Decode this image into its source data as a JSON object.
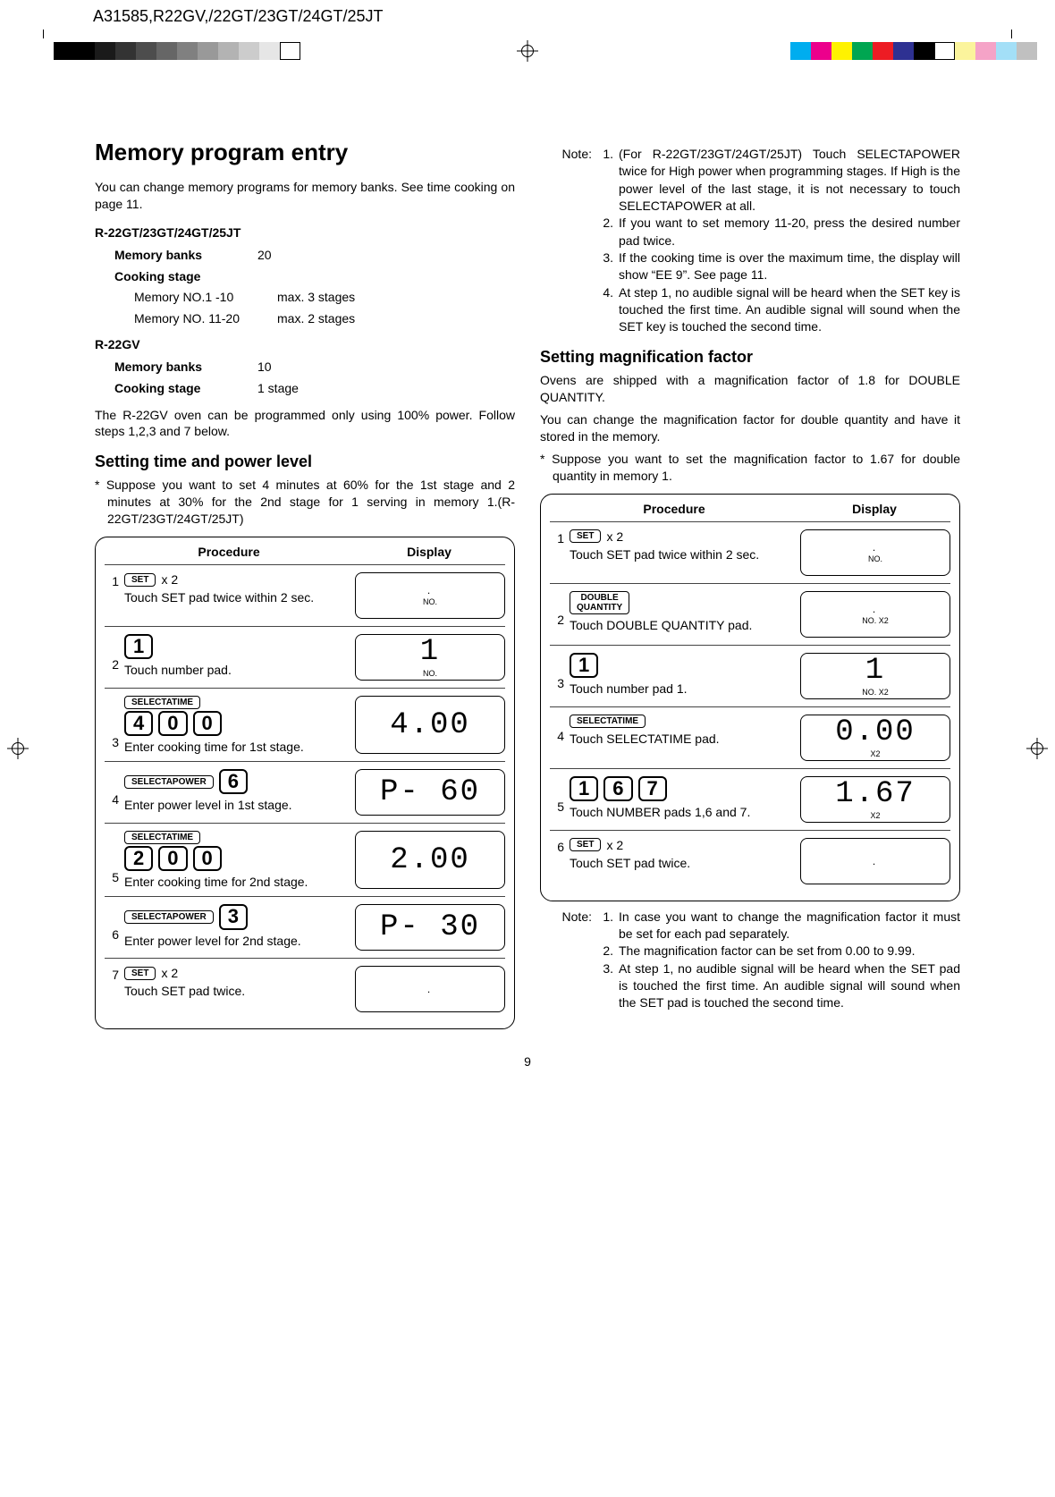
{
  "header": "A31585,R22GV,/22GT/23GT/24GT/25JT",
  "gray_swatches": [
    "#000000",
    "#000000",
    "#1a1a1a",
    "#333333",
    "#4d4d4d",
    "#666666",
    "#808080",
    "#999999",
    "#b3b3b3",
    "#cccccc",
    "#e6e6e6",
    "#ffffff"
  ],
  "color_swatches": [
    "#00adef",
    "#ec008c",
    "#fff200",
    "#00a651",
    "#ed1c24",
    "#2e3192",
    "#000000",
    "#ffffff",
    "#fbf49c",
    "#f5a3c7",
    "#a3dff7",
    "#c0c0c0"
  ],
  "left": {
    "h1": "Memory program entry",
    "intro": "You can change memory programs for  memory banks. See time cooking  on page 11.",
    "m1_head": "R-22GT/23GT/24GT/25JT",
    "m1_banks_label": "Memory banks",
    "m1_banks_val": "20",
    "m1_stage_label": "Cooking stage",
    "m1_sub1_l": "Memory NO.1 -10",
    "m1_sub1_v": "max. 3 stages",
    "m1_sub2_l": "Memory NO. 11-20",
    "m1_sub2_v": "max. 2 stages",
    "m2_head": "R-22GV",
    "m2_banks_label": "Memory banks",
    "m2_banks_val": "10",
    "m2_stage_label": "Cooking stage",
    "m2_stage_val": "1 stage",
    "note_gv": "The R-22GV oven can be programmed only using 100% power. Follow steps 1,2,3 and 7 below.",
    "h2a": "Setting time and power level",
    "suppose": "Suppose you want to set 4 minutes at 60% for the 1st stage and 2 minutes at 30% for the 2nd stage for 1 serving in memory 1.(R-22GT/23GT/24GT/25JT)",
    "tbl_proc": "Procedure",
    "tbl_disp": "Display",
    "step1_pad": "SET",
    "step1_mult": "x 2",
    "step1_txt": "Touch SET pad twice within 2 sec.",
    "step1_disp_sub": "NO.",
    "step2_pad": "1",
    "step2_txt": "Touch number pad.",
    "step2_disp_seg": "1",
    "step2_disp_sub": "NO.",
    "step3_padA": "SELECTATIME",
    "step3_pad1": "4",
    "step3_pad2": "0",
    "step3_pad3": "0",
    "step3_txt": "Enter cooking time for 1st stage.",
    "step3_disp_seg": "4.00",
    "step4_padA": "SELECTAPOWER",
    "step4_pad1": "6",
    "step4_txt": "Enter power level in 1st stage.",
    "step4_disp_seg": "P- 60",
    "step5_padA": "SELECTATIME",
    "step5_pad1": "2",
    "step5_pad2": "0",
    "step5_pad3": "0",
    "step5_txt": "Enter cooking time for 2nd stage.",
    "step5_disp_seg": "2.00",
    "step6_padA": "SELECTAPOWER",
    "step6_pad1": "3",
    "step6_txt": "Enter power level for 2nd stage.",
    "step6_disp_seg": "P- 30",
    "step7_pad": "SET",
    "step7_mult": "x 2",
    "step7_txt": "Touch SET pad twice."
  },
  "right": {
    "note_head": "Note:",
    "n1": "(For R-22GT/23GT/24GT/25JT) Touch SELECTAPOWER twice for High power when programming stages. If High is the power level of the last stage, it is not necessary to touch SELECTAPOWER at all.",
    "n2": "If you want to set memory 11-20, press the desired number  pad twice.",
    "n3": "If the cooking time is over the maximum time, the display will show “EE 9”. See page 11.",
    "n4": "At step 1, no audible signal will be heard when the SET key is touched the first time. An audible signal will sound when the SET key is touched the second time.",
    "h2b": "Setting magnification factor",
    "p1": "Ovens are shipped with a magnification factor of 1.8 for DOUBLE QUANTITY.",
    "p2": "You can change the magnification factor for double quantity and have it stored in the memory.",
    "suppose": "Suppose you want to set the magnification factor to 1.67 for double quantity in memory 1.",
    "tbl_proc": "Procedure",
    "tbl_disp": "Display",
    "r1_pad": "SET",
    "r1_mult": "x 2",
    "r1_txt": "Touch SET pad twice within 2 sec.",
    "r1_sub": "NO.",
    "r2_pad": "DOUBLE QUANTITY",
    "r2_txt": "Touch DOUBLE QUANTITY pad.",
    "r2_sub": "NO.  X2",
    "r3_pad": "1",
    "r3_txt": "Touch number pad 1.",
    "r3_seg": "1",
    "r3_sub": "NO.  X2",
    "r4_pad": "SELECTATIME",
    "r4_txt": "Touch SELECTATIME pad.",
    "r4_seg": "0.00",
    "r4_sub": "X2",
    "r5_pad1": "1",
    "r5_pad2": "6",
    "r5_pad3": "7",
    "r5_txt": "Touch NUMBER pads 1,6 and 7.",
    "r5_seg": "1.67",
    "r5_sub": "X2",
    "r6_pad": "SET",
    "r6_mult": "x 2",
    "r6_txt": "Touch SET pad twice.",
    "bnote_head": "Note:",
    "bn1": "In case you want to change the magnification factor it must be set for each pad separately.",
    "bn2": "The magnification factor can be set from 0.00 to 9.99.",
    "bn3": "At step 1, no audible signal will be heard when the SET pad is touched the first time. An audible signal will sound when the SET pad is touched the second time."
  },
  "page_num": "9"
}
